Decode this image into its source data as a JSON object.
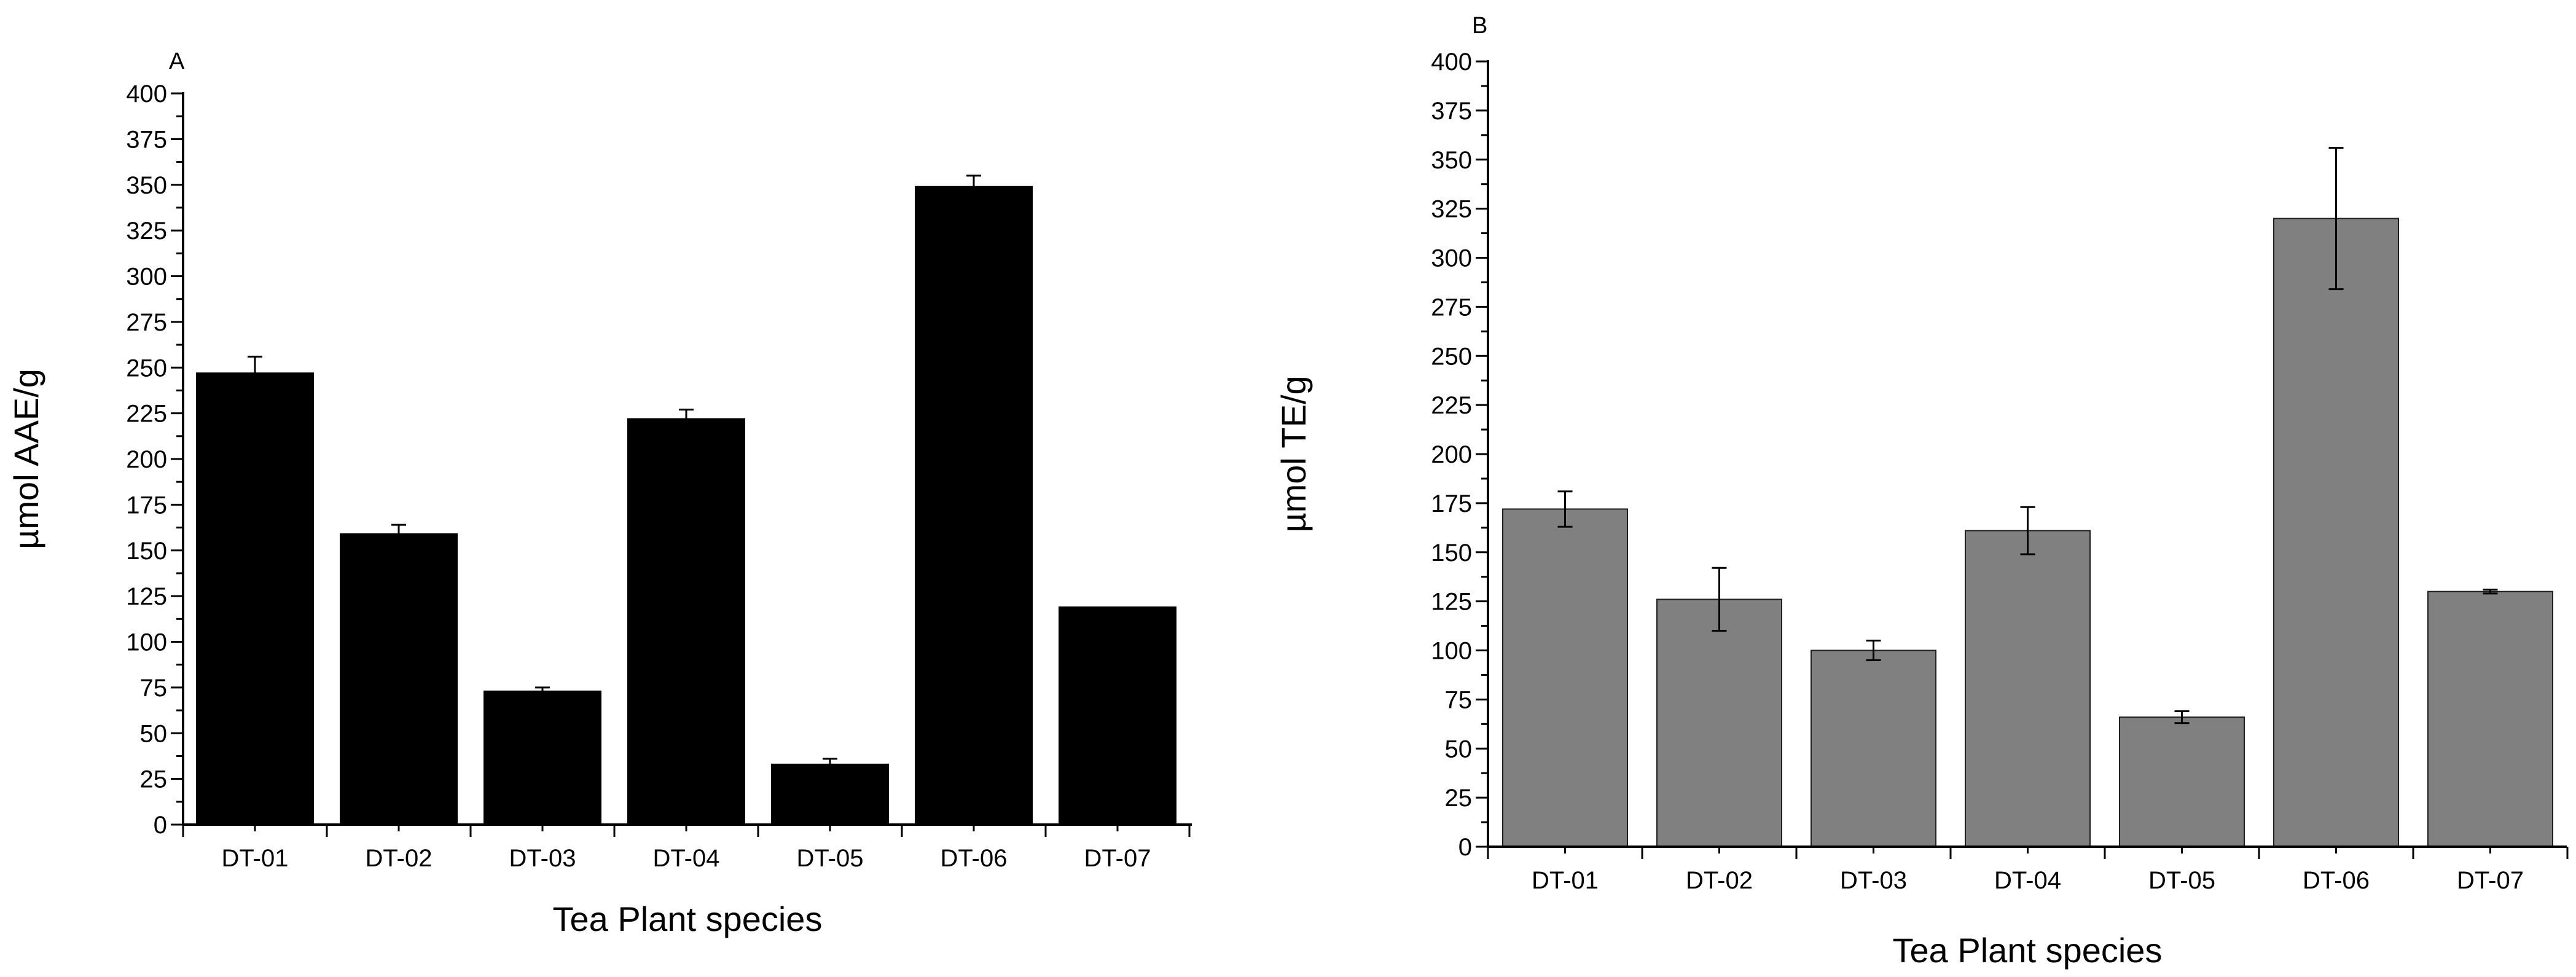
{
  "chart_data": [
    {
      "type": "bar",
      "panel": "A",
      "categories": [
        "DT-01",
        "DT-02",
        "DT-03",
        "DT-04",
        "DT-05",
        "DT-06",
        "DT-07"
      ],
      "values": [
        247,
        159,
        73,
        222,
        33,
        349,
        119
      ],
      "errors": [
        9,
        5,
        2,
        5,
        3,
        6,
        0
      ],
      "xlabel": "Tea Plant species",
      "ylabel": "µmol AAE/g",
      "ylim": [
        0,
        400
      ],
      "yticks": [
        "0",
        "25",
        "50",
        "75",
        "100",
        "125",
        "150",
        "175",
        "200",
        "225",
        "250",
        "275",
        "300",
        "325",
        "350",
        "375",
        "400"
      ],
      "bar_color": "#000000",
      "grid": false
    },
    {
      "type": "bar",
      "panel": "B",
      "categories": [
        "DT-01",
        "DT-02",
        "DT-03",
        "DT-04",
        "DT-05",
        "DT-06",
        "DT-07"
      ],
      "values": [
        172,
        126,
        100,
        161,
        66,
        320,
        130
      ],
      "errors": [
        9,
        16,
        5,
        12,
        3,
        36,
        1
      ],
      "xlabel": "Tea Plant species",
      "ylabel": "µmol TE/g",
      "ylim": [
        0,
        400
      ],
      "yticks": [
        "0",
        "25",
        "50",
        "75",
        "100",
        "125",
        "150",
        "175",
        "200",
        "225",
        "250",
        "275",
        "300",
        "325",
        "350",
        "375",
        "400"
      ],
      "bar_color": "#808080",
      "grid": false
    }
  ]
}
